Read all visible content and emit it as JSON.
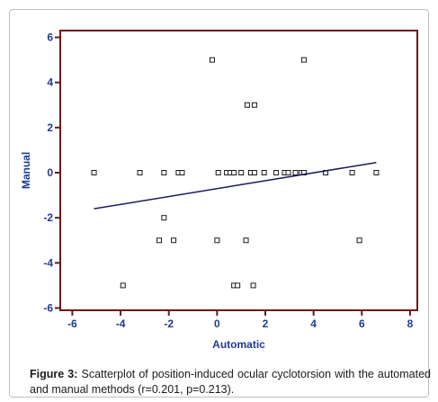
{
  "chart_data": {
    "type": "scatter",
    "xlabel": "Automatic",
    "ylabel": "Manual",
    "xlim": [
      -6.5,
      8.3
    ],
    "ylim": [
      -6.1,
      6.3
    ],
    "xticks": [
      -6,
      -4,
      -2,
      0,
      2,
      4,
      6,
      8
    ],
    "yticks": [
      -6,
      -4,
      -2,
      0,
      2,
      4,
      6
    ],
    "grid": false,
    "points": [
      {
        "x": -5.1,
        "y": 0
      },
      {
        "x": -3.2,
        "y": 0
      },
      {
        "x": -2.2,
        "y": 0
      },
      {
        "x": -1.6,
        "y": 0
      },
      {
        "x": -1.45,
        "y": 0
      },
      {
        "x": 0.05,
        "y": 0
      },
      {
        "x": 0.4,
        "y": 0
      },
      {
        "x": 0.55,
        "y": 0
      },
      {
        "x": 0.7,
        "y": 0
      },
      {
        "x": 1.0,
        "y": 0
      },
      {
        "x": 1.4,
        "y": 0
      },
      {
        "x": 1.55,
        "y": 0
      },
      {
        "x": 1.95,
        "y": 0
      },
      {
        "x": 2.45,
        "y": 0
      },
      {
        "x": 2.8,
        "y": 0
      },
      {
        "x": 2.95,
        "y": 0
      },
      {
        "x": 3.25,
        "y": 0
      },
      {
        "x": 3.5,
        "y": 0
      },
      {
        "x": 3.6,
        "y": 0
      },
      {
        "x": 4.5,
        "y": 0
      },
      {
        "x": 5.6,
        "y": 0
      },
      {
        "x": 6.6,
        "y": 0
      },
      {
        "x": -0.2,
        "y": 5
      },
      {
        "x": 3.6,
        "y": 5
      },
      {
        "x": 1.25,
        "y": 3
      },
      {
        "x": 1.55,
        "y": 3
      },
      {
        "x": -2.2,
        "y": -2
      },
      {
        "x": -2.4,
        "y": -3
      },
      {
        "x": -1.8,
        "y": -3
      },
      {
        "x": 0.0,
        "y": -3
      },
      {
        "x": 1.2,
        "y": -3
      },
      {
        "x": 5.9,
        "y": -3
      },
      {
        "x": -3.9,
        "y": -5
      },
      {
        "x": 0.7,
        "y": -5
      },
      {
        "x": 0.85,
        "y": -5
      },
      {
        "x": 1.5,
        "y": -5
      }
    ],
    "regression_line": {
      "x": [
        -5.1,
        6.6
      ],
      "y": [
        -1.6,
        0.45
      ]
    }
  },
  "caption": {
    "label": "Figure 3:",
    "text": " Scatterplot of position-induced ocular cyclotorsion with the automated and manual methods (r=0.201, p=0.213)."
  },
  "colors": {
    "axis": "#6b1a1a",
    "text": "#1f3a93",
    "line": "#1a1a5e",
    "marker": "#1a1a1a"
  }
}
